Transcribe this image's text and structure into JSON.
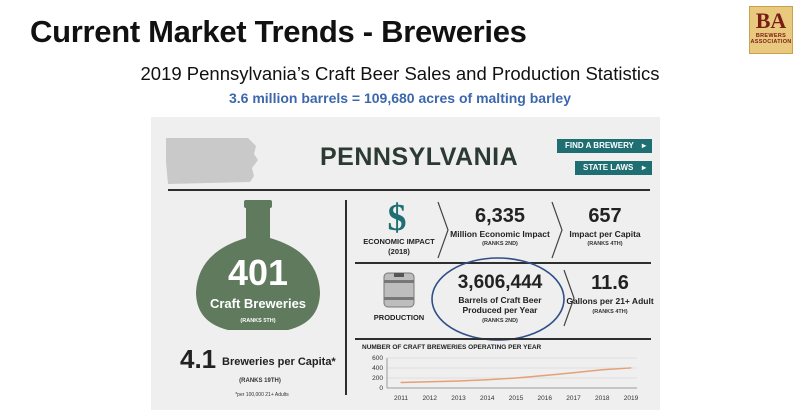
{
  "slide": {
    "title": "Current Market Trends - Breweries",
    "subtitle": "2019 Pennsylvania’s Craft Beer Sales and Production Statistics",
    "highlight": "3.6 million barrels = 109,680 acres of malting barley"
  },
  "logo": {
    "mark": "BA",
    "line1": "BREWERS",
    "line2": "ASSOCIATION"
  },
  "infographic": {
    "state_name": "PENNSYLVANIA",
    "buttons": {
      "find_brewery": "FIND A BREWERY",
      "state_laws": "STATE LAWS"
    },
    "craft_breweries": {
      "value": "401",
      "label": "Craft Breweries",
      "rank": "(RANKS 5TH)"
    },
    "per_capita": {
      "value": "4.1",
      "label": "Breweries per Capita*",
      "rank": "(RANKS 19TH)",
      "footnote": "*per 100,000 21+ Adults"
    },
    "economic_impact": {
      "icon_symbol": "$",
      "label": "ECONOMIC IMPACT",
      "year": "(2018)",
      "value": "6,335",
      "value_label": "Million Economic Impact",
      "value_rank": "(RANKS 2ND)",
      "per_capita_value": "657",
      "per_capita_label": "Impact per Capita",
      "per_capita_rank": "(RANKS 4TH)"
    },
    "production": {
      "label": "PRODUCTION",
      "value": "3,606,444",
      "value_label": "Barrels of Craft Beer Produced per Year",
      "value_rank": "(RANKS 2ND)",
      "per_adult_value": "11.6",
      "per_adult_label": "Gallons per 21+ Adult",
      "per_adult_rank": "(RANKS 4TH)"
    },
    "colors": {
      "accent_teal": "#1f6f72",
      "bottle_green": "#5f7a5c",
      "line_orange": "#e5a078",
      "circle_blue": "#2f4f88"
    }
  },
  "chart_data": {
    "type": "line",
    "title": "NUMBER OF CRAFT BREWERIES OPERATING PER YEAR",
    "x": [
      "2011",
      "2012",
      "2013",
      "2014",
      "2015",
      "2016",
      "2017",
      "2018",
      "2019"
    ],
    "series": [
      {
        "name": "Craft breweries",
        "values": [
          110,
          125,
          140,
          165,
          200,
          250,
          305,
          365,
          401
        ]
      }
    ],
    "yticks": [
      "600",
      "400",
      "200",
      "0"
    ],
    "ylim": [
      0,
      600
    ],
    "grid": true
  }
}
